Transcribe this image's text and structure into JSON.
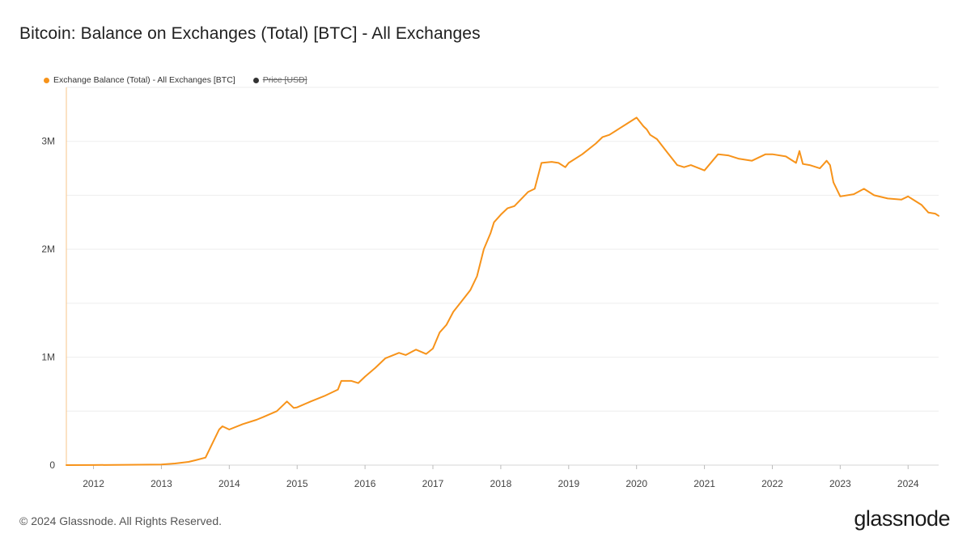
{
  "header": {
    "title": "Bitcoin: Balance on Exchanges (Total) [BTC] - All Exchanges"
  },
  "legend": {
    "items": [
      {
        "label": "Exchange Balance (Total) - All Exchanges [BTC]",
        "color": "#f7931a",
        "active": true
      },
      {
        "label": "Price [USD]",
        "color": "#333333",
        "active": false
      }
    ]
  },
  "footer": {
    "copyright": "© 2024 Glassnode. All Rights Reserved.",
    "logo": "glassnode"
  },
  "chart_data": {
    "type": "line",
    "title": "Bitcoin: Balance on Exchanges (Total) [BTC] - All Exchanges",
    "xlabel": "",
    "ylabel": "",
    "ylim": [
      0,
      3500000
    ],
    "xlim": [
      2011.6,
      2024.45
    ],
    "yticks": [
      0,
      1000000,
      2000000,
      3000000
    ],
    "ytick_labels": [
      "0",
      "1M",
      "2M",
      "3M"
    ],
    "xticks": [
      2012,
      2013,
      2014,
      2015,
      2016,
      2017,
      2018,
      2019,
      2020,
      2021,
      2022,
      2023,
      2024
    ],
    "xtick_labels": [
      "2012",
      "2013",
      "2014",
      "2015",
      "2016",
      "2017",
      "2018",
      "2019",
      "2020",
      "2021",
      "2022",
      "2023",
      "2024"
    ],
    "grid": true,
    "legend_position": "top-left",
    "series": [
      {
        "name": "Exchange Balance (Total) - All Exchanges [BTC]",
        "color": "#f7931a",
        "x": [
          2011.6,
          2012.0,
          2012.5,
          2013.0,
          2013.2,
          2013.4,
          2013.5,
          2013.65,
          2013.75,
          2013.85,
          2013.9,
          2014.0,
          2014.2,
          2014.4,
          2014.5,
          2014.7,
          2014.85,
          2014.95,
          2015.0,
          2015.2,
          2015.4,
          2015.6,
          2015.65,
          2015.8,
          2015.9,
          2016.0,
          2016.15,
          2016.3,
          2016.5,
          2016.6,
          2016.75,
          2016.9,
          2017.0,
          2017.1,
          2017.2,
          2017.3,
          2017.45,
          2017.55,
          2017.65,
          2017.75,
          2017.85,
          2017.9,
          2018.0,
          2018.1,
          2018.2,
          2018.4,
          2018.5,
          2018.6,
          2018.75,
          2018.85,
          2018.95,
          2019.0,
          2019.2,
          2019.4,
          2019.5,
          2019.6,
          2019.75,
          2019.85,
          2020.0,
          2020.1,
          2020.15,
          2020.2,
          2020.3,
          2020.45,
          2020.6,
          2020.7,
          2020.8,
          2021.0,
          2021.2,
          2021.35,
          2021.5,
          2021.7,
          2021.9,
          2022.0,
          2022.2,
          2022.35,
          2022.4,
          2022.45,
          2022.55,
          2022.7,
          2022.8,
          2022.85,
          2022.9,
          2023.0,
          2023.2,
          2023.35,
          2023.5,
          2023.7,
          2023.9,
          2024.0,
          2024.1,
          2024.2,
          2024.3,
          2024.4,
          2024.45
        ],
        "values": [
          0,
          1000,
          3000,
          5000,
          15000,
          30000,
          45000,
          70000,
          200000,
          330000,
          360000,
          330000,
          380000,
          420000,
          445000,
          500000,
          590000,
          530000,
          535000,
          590000,
          640000,
          700000,
          780000,
          780000,
          760000,
          820000,
          900000,
          990000,
          1040000,
          1020000,
          1070000,
          1030000,
          1080000,
          1230000,
          1300000,
          1420000,
          1540000,
          1620000,
          1750000,
          2000000,
          2150000,
          2250000,
          2320000,
          2380000,
          2400000,
          2530000,
          2560000,
          2800000,
          2810000,
          2800000,
          2760000,
          2800000,
          2880000,
          2980000,
          3040000,
          3060000,
          3120000,
          3160000,
          3220000,
          3140000,
          3110000,
          3060000,
          3020000,
          2900000,
          2780000,
          2760000,
          2780000,
          2730000,
          2880000,
          2870000,
          2840000,
          2820000,
          2880000,
          2880000,
          2860000,
          2800000,
          2910000,
          2790000,
          2780000,
          2750000,
          2820000,
          2780000,
          2620000,
          2490000,
          2510000,
          2560000,
          2500000,
          2470000,
          2460000,
          2490000,
          2450000,
          2410000,
          2340000,
          2330000,
          2310000
        ]
      }
    ]
  }
}
